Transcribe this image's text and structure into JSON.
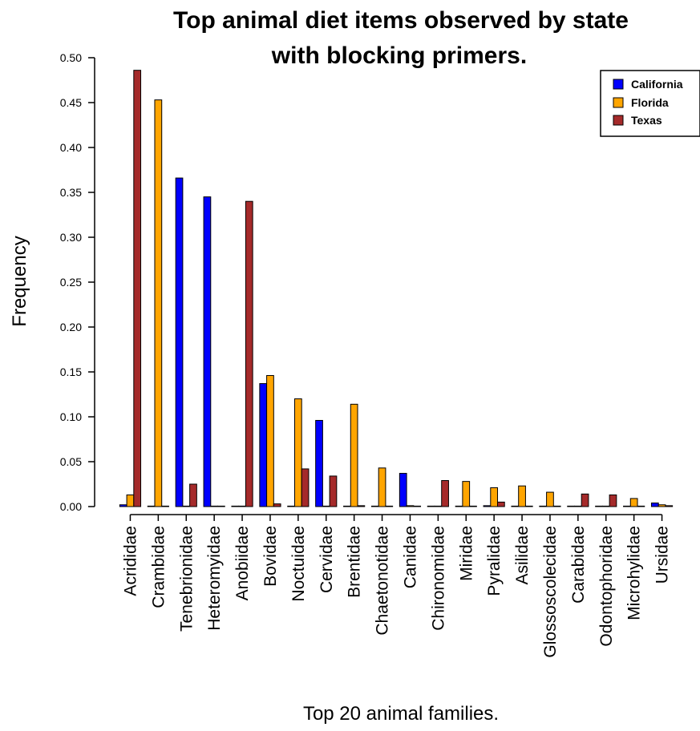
{
  "chart_data": {
    "type": "bar",
    "title_lines": [
      "Top animal diet items observed by state",
      "with blocking primers."
    ],
    "xlabel": "Top 20 animal families.",
    "ylabel": "Frequency",
    "ylim": [
      0,
      0.5
    ],
    "yticks": [
      "0.00",
      "0.05",
      "0.10",
      "0.15",
      "0.20",
      "0.25",
      "0.30",
      "0.35",
      "0.40",
      "0.45",
      "0.50"
    ],
    "ytick_values": [
      0,
      0.05,
      0.1,
      0.15,
      0.2,
      0.25,
      0.3,
      0.35,
      0.4,
      0.45,
      0.5
    ],
    "legend_position": "top-right",
    "categories": [
      "Acrididae",
      "Crambidae",
      "Tenebrionidae",
      "Heteromyidae",
      "Anobiidae",
      "Bovidae",
      "Noctuidae",
      "Cervidae",
      "Brentidae",
      "Chaetonotidae",
      "Canidae",
      "Chironomidae",
      "Miridae",
      "Pyralidae",
      "Asilidae",
      "Glossoscolecidae",
      "Carabidae",
      "Odontophoridae",
      "Microhylidae",
      "Ursidae"
    ],
    "series": [
      {
        "name": "California",
        "color": "#0000ff",
        "values": [
          0.002,
          0.0,
          0.366,
          0.345,
          0.0,
          0.137,
          0.0,
          0.096,
          0.0,
          0.0,
          0.037,
          0.0,
          0.0,
          0.001,
          0.0,
          0.0,
          0.0,
          0.0,
          0.0,
          0.004
        ]
      },
      {
        "name": "Florida",
        "color": "#ffa500",
        "values": [
          0.013,
          0.453,
          0.0,
          0.0,
          0.0,
          0.146,
          0.12,
          0.0,
          0.114,
          0.043,
          0.001,
          0.0,
          0.028,
          0.021,
          0.023,
          0.016,
          0.0,
          0.0,
          0.009,
          0.002
        ]
      },
      {
        "name": "Texas",
        "color": "#a52a2a",
        "values": [
          0.486,
          0.0,
          0.025,
          0.0,
          0.34,
          0.003,
          0.042,
          0.034,
          0.001,
          0.0,
          0.0,
          0.029,
          0.0,
          0.005,
          0.0,
          0.0,
          0.014,
          0.013,
          0.0,
          0.001
        ]
      }
    ]
  }
}
